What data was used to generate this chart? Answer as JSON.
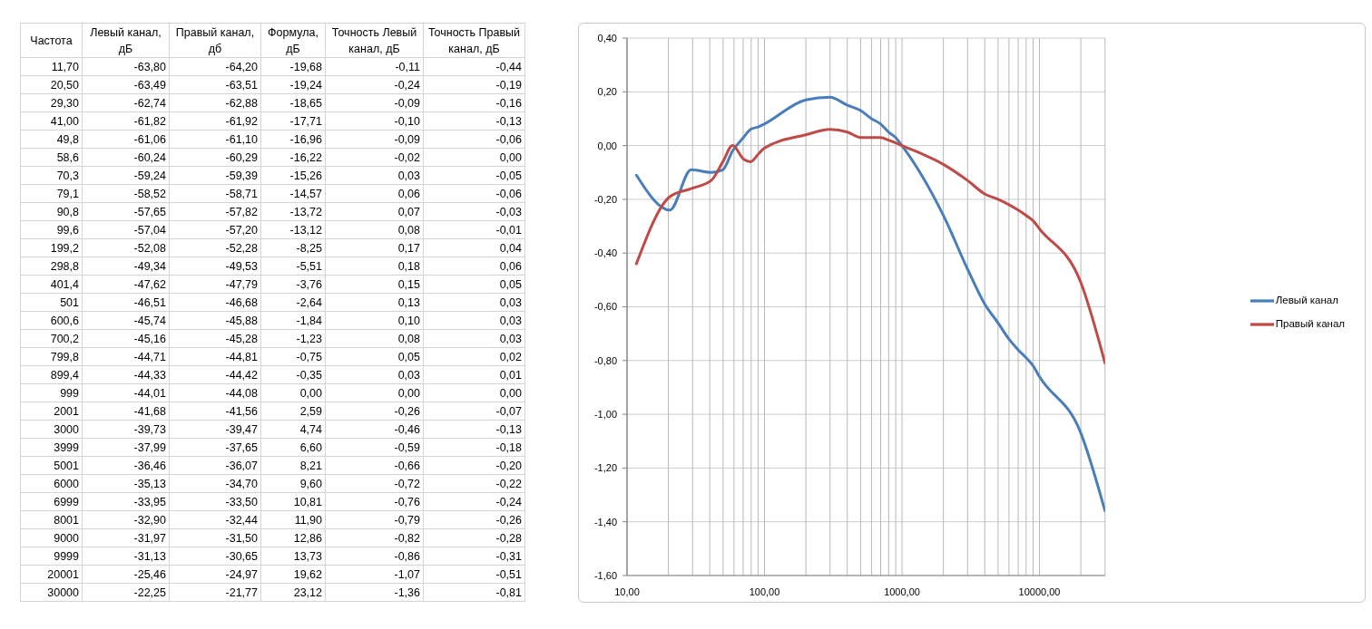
{
  "chart_data": [
    {
      "type": "other",
      "categories": [
        "Частота",
        "Левый канал, дБ",
        "Правый канал, дб",
        "Формула, дБ",
        "Точность Левый канал, дБ",
        "Точность Правый канал, дБ"
      ],
      "annotations": [
        "11,70",
        "-63,80",
        "-64,20",
        "-19,68",
        "-0,11",
        "-0,44",
        "20,50",
        "-63,49",
        "-63,51",
        "-19,24",
        "-0,24",
        "-0,19",
        "29,30",
        "-62,74",
        "-62,88",
        "-18,65",
        "-0,09",
        "-0,16",
        "41,00",
        "-61,82",
        "-61,92",
        "-17,71",
        "-0,10",
        "-0,13",
        "49,8",
        "-61,06",
        "-61,10",
        "-16,96",
        "-0,09",
        "-0,06",
        "58,6",
        "-60,24",
        "-60,29",
        "-16,22",
        "-0,02",
        "0,00",
        "70,3",
        "-59,24",
        "-59,39",
        "-15,26",
        "0,03",
        "-0,05",
        "79,1",
        "-58,52",
        "-58,71",
        "-14,57",
        "0,06",
        "-0,06",
        "90,8",
        "-57,65",
        "-57,82",
        "-13,72",
        "0,07",
        "-0,03",
        "99,6",
        "-57,04",
        "-57,20",
        "-13,12",
        "0,08",
        "-0,01",
        "199,2",
        "-52,08",
        "-52,28",
        "-8,25",
        "0,17",
        "0,04",
        "298,8",
        "-49,34",
        "-49,53",
        "-5,51",
        "0,18",
        "0,06",
        "401,4",
        "-47,62",
        "-47,79",
        "-3,76",
        "0,15",
        "0,05",
        "501",
        "-46,51",
        "-46,68",
        "-2,64",
        "0,13",
        "0,03",
        "600,6",
        "-45,74",
        "-45,88",
        "-1,84",
        "0,10",
        "0,03",
        "700,2",
        "-45,16",
        "-45,28",
        "-1,23",
        "0,08",
        "0,03",
        "799,8",
        "-44,71",
        "-44,81",
        "-0,75",
        "0,05",
        "0,02",
        "899,4",
        "-44,33",
        "-44,42",
        "-0,35",
        "0,03",
        "0,01",
        "999",
        "-44,01",
        "-44,08",
        "0,00",
        "0,00",
        "0,00",
        "2001",
        "-41,68",
        "-41,56",
        "2,59",
        "-0,26",
        "-0,07",
        "3000",
        "-39,73",
        "-39,47",
        "4,74",
        "-0,46",
        "-0,13",
        "3999",
        "-37,99",
        "-37,65",
        "6,60",
        "-0,59",
        "-0,18",
        "5001",
        "-36,46",
        "-36,07",
        "8,21",
        "-0,66",
        "-0,20",
        "6000",
        "-35,13",
        "-34,70",
        "9,60",
        "-0,72",
        "-0,22",
        "6999",
        "-33,95",
        "-33,50",
        "10,81",
        "-0,76",
        "-0,24",
        "8001",
        "-32,90",
        "-32,44",
        "11,90",
        "-0,79",
        "-0,26",
        "9000",
        "-31,97",
        "-31,50",
        "12,86",
        "-0,82",
        "-0,28",
        "9999",
        "-31,13",
        "-30,65",
        "13,73",
        "-0,86",
        "-0,31",
        "20001",
        "-25,46",
        "-24,97",
        "19,62",
        "-1,07",
        "-0,51",
        "30000",
        "-22,25",
        "-21,77",
        "23,12",
        "-1,36",
        "-0,81"
      ]
    },
    {
      "type": "line",
      "x": [
        11.7,
        20.5,
        29.3,
        41,
        49.8,
        58.6,
        70.3,
        79.1,
        90.8,
        99.6,
        199.2,
        298.8,
        401.4,
        501,
        600.6,
        700.2,
        799.8,
        899.4,
        999,
        2001,
        3000,
        3999,
        5001,
        6000,
        6999,
        8001,
        9000,
        9999,
        20001,
        30000
      ],
      "series": [
        {
          "name": "Левый канал",
          "color": "#4a7ebb",
          "values": [
            -0.11,
            -0.24,
            -0.09,
            -0.1,
            -0.09,
            -0.02,
            0.03,
            0.06,
            0.07,
            0.08,
            0.17,
            0.18,
            0.15,
            0.13,
            0.1,
            0.08,
            0.05,
            0.03,
            0,
            -0.26,
            -0.46,
            -0.59,
            -0.66,
            -0.72,
            -0.76,
            -0.79,
            -0.82,
            -0.86,
            -1.07,
            -1.36
          ]
        },
        {
          "name": "Правый канал",
          "color": "#be4b48",
          "values": [
            -0.44,
            -0.19,
            -0.16,
            -0.13,
            -0.06,
            0,
            -0.05,
            -0.06,
            -0.03,
            -0.01,
            0.04,
            0.06,
            0.05,
            0.03,
            0.03,
            0.03,
            0.02,
            0.01,
            0,
            -0.07,
            -0.13,
            -0.18,
            -0.2,
            -0.22,
            -0.24,
            -0.26,
            -0.28,
            -0.31,
            -0.51,
            -0.81
          ]
        }
      ],
      "log": "x",
      "xlim": [
        10,
        30000
      ],
      "xticks": [
        {
          "value": 10,
          "label": "10,00"
        },
        {
          "value": 20,
          "label": null
        },
        {
          "value": 30,
          "label": null
        },
        {
          "value": 40,
          "label": null
        },
        {
          "value": 50,
          "label": null
        },
        {
          "value": 60,
          "label": null
        },
        {
          "value": 70,
          "label": null
        },
        {
          "value": 80,
          "label": null
        },
        {
          "value": 90,
          "label": null
        },
        {
          "value": 100,
          "label": "100,00"
        },
        {
          "value": 200,
          "label": null
        },
        {
          "value": 300,
          "label": null
        },
        {
          "value": 400,
          "label": null
        },
        {
          "value": 500,
          "label": null
        },
        {
          "value": 600,
          "label": null
        },
        {
          "value": 700,
          "label": null
        },
        {
          "value": 800,
          "label": null
        },
        {
          "value": 900,
          "label": null
        },
        {
          "value": 1000,
          "label": "1000,00"
        },
        {
          "value": 2000,
          "label": null
        },
        {
          "value": 3000,
          "label": null
        },
        {
          "value": 4000,
          "label": null
        },
        {
          "value": 5000,
          "label": null
        },
        {
          "value": 6000,
          "label": null
        },
        {
          "value": 7000,
          "label": null
        },
        {
          "value": 8000,
          "label": null
        },
        {
          "value": 9000,
          "label": null
        },
        {
          "value": 10000,
          "label": "10000,00"
        },
        {
          "value": 20000,
          "label": null
        },
        {
          "value": 30000,
          "label": null
        }
      ],
      "ylim": [
        -1.6,
        0.4
      ],
      "yticks": [
        {
          "value": -1.6,
          "label": "-1,60"
        },
        {
          "value": -1.4,
          "label": "-1,40"
        },
        {
          "value": -1.2,
          "label": "-1,20"
        },
        {
          "value": -1,
          "label": "-1,00"
        },
        {
          "value": -0.8,
          "label": "-0,80"
        },
        {
          "value": -0.6,
          "label": "-0,60"
        },
        {
          "value": -0.4,
          "label": "-0,40"
        },
        {
          "value": -0.2,
          "label": "-0,20"
        },
        {
          "value": 0,
          "label": "0,00"
        },
        {
          "value": 0.2,
          "label": "0,20"
        },
        {
          "value": 0.4,
          "label": "0,40"
        }
      ],
      "grid": true,
      "legend": "right",
      "marker": "none",
      "line_style": "solid"
    }
  ]
}
